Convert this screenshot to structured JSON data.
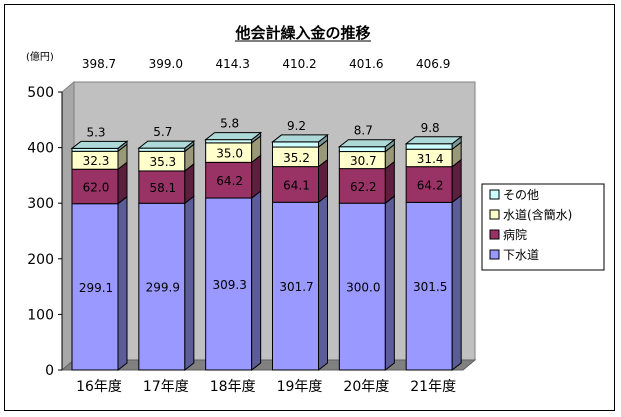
{
  "chart_data": {
    "type": "bar",
    "stacked": true,
    "title": "他会計繰入金の推移",
    "unit_label": "(億円)",
    "categories": [
      "16年度",
      "17年度",
      "18年度",
      "19年度",
      "20年度",
      "21年度"
    ],
    "totals": [
      "398.7",
      "399.0",
      "414.3",
      "410.2",
      "401.6",
      "406.9"
    ],
    "series": [
      {
        "name": "下水道",
        "values": [
          299.1,
          299.9,
          309.3,
          301.7,
          300.0,
          301.5
        ],
        "labels": [
          "299.1",
          "299.9",
          "309.3",
          "301.7",
          "300.0",
          "301.5"
        ],
        "color": "#9999ff"
      },
      {
        "name": "病院",
        "values": [
          62.0,
          58.1,
          64.2,
          64.1,
          62.2,
          64.2
        ],
        "labels": [
          "62.0",
          "58.1",
          "64.2",
          "64.1",
          "62.2",
          "64.2"
        ],
        "color": "#993366"
      },
      {
        "name": "水道(含簡水)",
        "values": [
          32.3,
          35.3,
          35.0,
          35.2,
          30.7,
          31.4
        ],
        "labels": [
          "32.3",
          "35.3",
          "35.0",
          "35.2",
          "30.7",
          "31.4"
        ],
        "color": "#ffffcc"
      },
      {
        "name": "その他",
        "values": [
          5.3,
          5.7,
          5.8,
          9.2,
          8.7,
          9.8
        ],
        "labels": [
          "5.3",
          "5.7",
          "5.8",
          "9.2",
          "8.7",
          "9.8"
        ],
        "color": "#ccffff"
      }
    ],
    "yticks": [
      "0",
      "100",
      "200",
      "300",
      "400",
      "500"
    ],
    "ylim": [
      0,
      500
    ],
    "legend_position": "right",
    "legend_order": [
      "その他",
      "水道(含簡水)",
      "病院",
      "下水道"
    ]
  }
}
